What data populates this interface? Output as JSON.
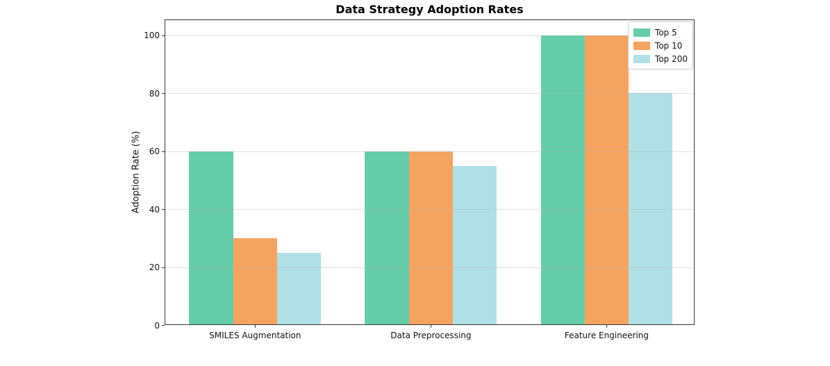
{
  "chart_data": {
    "type": "bar",
    "title": "Data Strategy Adoption Rates",
    "ylabel": "Adoption Rate (%)",
    "xlabel": "",
    "categories": [
      "SMILES Augmentation",
      "Data Preprocessing",
      "Feature Engineering"
    ],
    "series": [
      {
        "name": "Top 5",
        "color": "#66CDAA",
        "values": [
          60,
          60,
          100
        ]
      },
      {
        "name": "Top 10",
        "color": "#F4A460",
        "values": [
          30,
          60,
          100
        ]
      },
      {
        "name": "Top 200",
        "color": "#B0E0E6",
        "values": [
          25,
          55,
          80
        ]
      }
    ],
    "ylim": [
      0,
      105.5
    ],
    "yticks": [
      0,
      20,
      40,
      60,
      80,
      100
    ],
    "grid": "horizontal",
    "legend_position": "upper right",
    "background_color": "#ffffff",
    "axis_color": "#333333"
  }
}
